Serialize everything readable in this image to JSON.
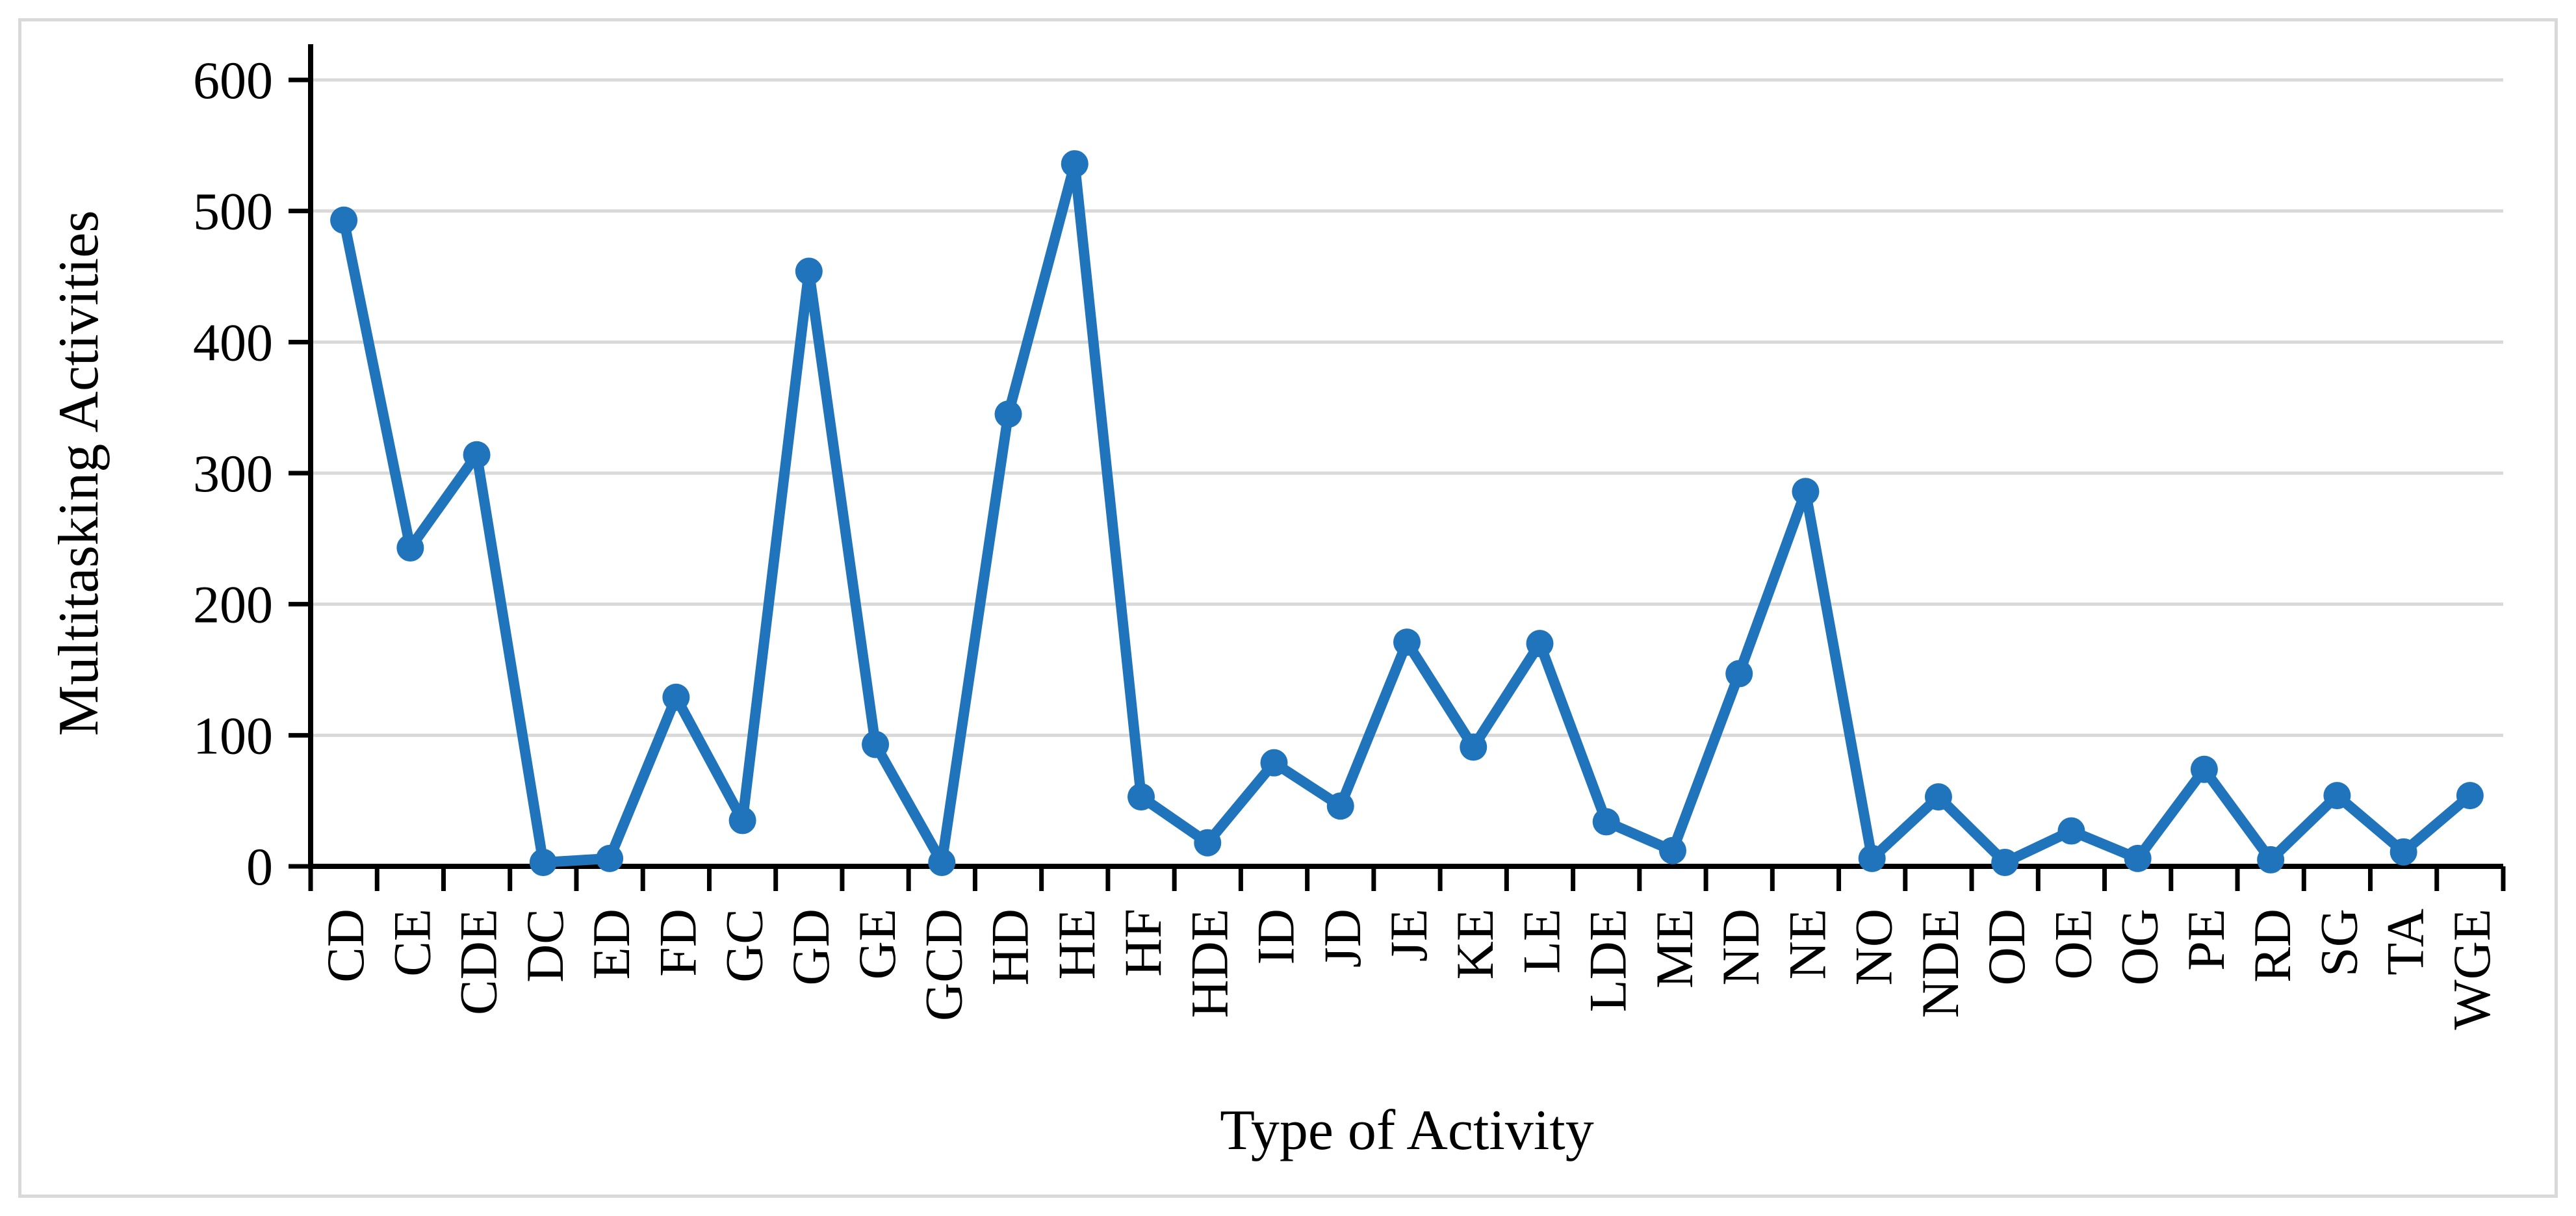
{
  "chart_data": {
    "type": "line",
    "title": "",
    "xlabel": "Type of Activity",
    "ylabel": "Multitasking Activities",
    "categories": [
      "CD",
      "CE",
      "CDE",
      "DC",
      "ED",
      "FD",
      "GC",
      "GD",
      "GE",
      "GCD",
      "HD",
      "HE",
      "HF",
      "HDE",
      "ID",
      "JD",
      "JE",
      "KE",
      "LE",
      "LDE",
      "ME",
      "ND",
      "NE",
      "NO",
      "NDE",
      "OD",
      "OE",
      "OG",
      "PE",
      "RD",
      "SG",
      "TA",
      "WGE"
    ],
    "values": [
      493,
      243,
      314,
      3,
      6,
      129,
      35,
      454,
      93,
      3,
      345,
      536,
      53,
      18,
      79,
      46,
      171,
      91,
      170,
      34,
      12,
      147,
      286,
      6,
      53,
      3,
      27,
      6,
      74,
      5,
      54,
      11,
      54
    ],
    "ylim": [
      0,
      600
    ],
    "yticks": [
      0,
      100,
      200,
      300,
      400,
      500,
      600
    ],
    "grid": true,
    "legend": "none",
    "line_color": "#1f74bc",
    "marker": "circle",
    "gridline_color": "#d9d9d9",
    "axis_color": "#000000",
    "border_color": "#d9d9d9"
  }
}
